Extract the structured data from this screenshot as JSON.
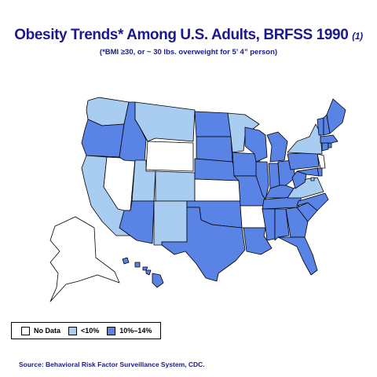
{
  "title": "Obesity Trends* Among U.S. Adults, BRFSS 1990",
  "title_ref": "(1)",
  "subtitle": "(*BMI ≥30, or ~ 30 lbs. overweight for 5’ 4” person)",
  "legend": [
    {
      "label": "No Data",
      "color": "#ffffff"
    },
    {
      "label": "<10%",
      "color": "#a9cdf1"
    },
    {
      "label": "10%–14%",
      "color": "#5a83e6"
    }
  ],
  "source": "Source: Behavioral Risk Factor Surveillance System, CDC.",
  "colors": {
    "no_data": "#ffffff",
    "under_10": "#a9cdf1",
    "pct_10_14": "#5a83e6",
    "title": "#1a1a8c",
    "border": "#000000"
  },
  "states": {
    "WA": "under_10",
    "OR": "pct_10_14",
    "CA": "under_10",
    "NV": "no_data",
    "ID": "pct_10_14",
    "MT": "under_10",
    "WY": "no_data",
    "UT": "under_10",
    "CO": "under_10",
    "AZ": "pct_10_14",
    "NM": "under_10",
    "ND": "pct_10_14",
    "SD": "pct_10_14",
    "NE": "pct_10_14",
    "KS": "no_data",
    "OK": "pct_10_14",
    "TX": "pct_10_14",
    "MN": "under_10",
    "IA": "pct_10_14",
    "MO": "pct_10_14",
    "AR": "no_data",
    "LA": "pct_10_14",
    "WI": "pct_10_14",
    "IL": "pct_10_14",
    "MI": "pct_10_14",
    "IN": "pct_10_14",
    "OH": "pct_10_14",
    "KY": "pct_10_14",
    "TN": "pct_10_14",
    "MS": "pct_10_14",
    "AL": "pct_10_14",
    "GA": "pct_10_14",
    "FL": "pct_10_14",
    "SC": "pct_10_14",
    "NC": "pct_10_14",
    "VA": "under_10",
    "WV": "pct_10_14",
    "MD": "pct_10_14",
    "DE": "pct_10_14",
    "NJ": "no_data",
    "PA": "pct_10_14",
    "NY": "under_10",
    "CT": "pct_10_14",
    "RI": "pct_10_14",
    "MA": "pct_10_14",
    "VT": "pct_10_14",
    "NH": "pct_10_14",
    "ME": "pct_10_14",
    "DC": "under_10",
    "AK": "no_data",
    "HI": "pct_10_14"
  }
}
